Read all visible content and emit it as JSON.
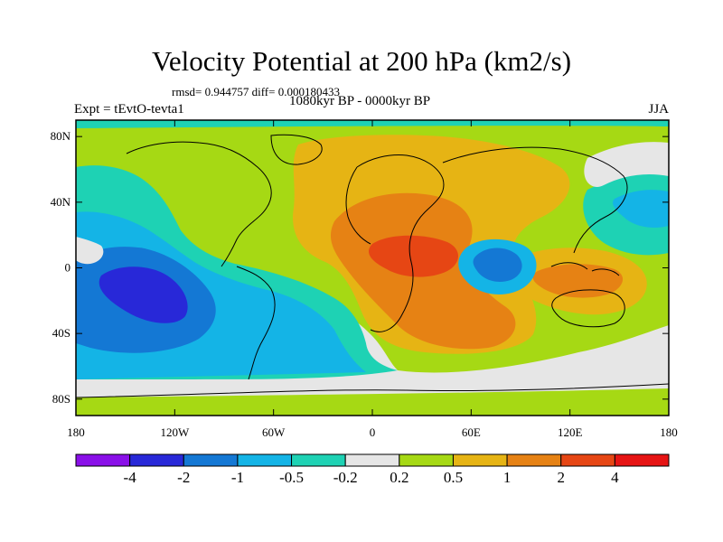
{
  "header": {
    "title": "Velocity Potential at 200 hPa (km2/s)",
    "stats": "rmsd= 0.944757 diff= 0.000180433",
    "experiment": "Expt = tEvtO-tevta1",
    "period": "1080kyr BP - 0000kyr BP",
    "season": "JJA"
  },
  "axes": {
    "lat_ticks": [
      {
        "label": "80N",
        "value": 80
      },
      {
        "label": "40N",
        "value": 40
      },
      {
        "label": "0",
        "value": 0
      },
      {
        "label": "40S",
        "value": -40
      },
      {
        "label": "80S",
        "value": -80
      }
    ],
    "lon_ticks": [
      {
        "label": "180",
        "value": -180
      },
      {
        "label": "120W",
        "value": -120
      },
      {
        "label": "60W",
        "value": -60
      },
      {
        "label": "0",
        "value": 0
      },
      {
        "label": "60E",
        "value": 60
      },
      {
        "label": "120E",
        "value": 120
      },
      {
        "label": "180",
        "value": 180
      }
    ]
  },
  "colorbar": {
    "labels": [
      "-4",
      "-2",
      "-1",
      "-0.5",
      "-0.2",
      "0.2",
      "0.5",
      "1",
      "2",
      "4"
    ],
    "colors": [
      "#8a10e8",
      "#2828d8",
      "#1478d4",
      "#14b4e6",
      "#1ed2b4",
      "#e6e6e6",
      "#a6d914",
      "#e6b414",
      "#e68214",
      "#e64614",
      "#e61414"
    ]
  },
  "map": {
    "background_color": "#a6d914"
  }
}
